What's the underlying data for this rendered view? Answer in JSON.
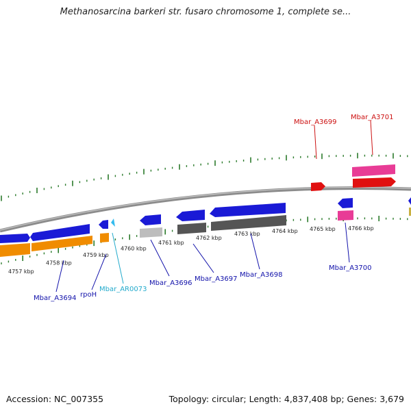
{
  "title": "Methanosarcina barkeri str. fusaro chromosome 1, complete se...",
  "footer": {
    "accession": "Accession: NC_007355",
    "summary": "Topology: circular; Length: 4,837,408 bp; Genes: 3,679"
  },
  "colors": {
    "backbone": "#8c8c8c",
    "tick": "#2a7a2a",
    "gene_blue": "#1a1ad6",
    "cds_orange": "#f08c00",
    "ncrna_cyan": "#33bbee",
    "pseudo_gray": "#bdbdbd",
    "dark_gray": "#555555",
    "pink": "#e83c96",
    "red": "#e01010",
    "label_blue": "#1111aa",
    "label_cyan": "#22aacc",
    "label_red": "#cc1010"
  },
  "axis": {
    "unit": "kbp",
    "tick_labels": [
      "4757 kbp",
      "4758 kbp",
      "4759 kbp",
      "4760 kbp",
      "4761 kbp",
      "4762 kbp",
      "4763 kbp",
      "4764 kbp",
      "4765 kbp",
      "4766 kbp"
    ]
  },
  "genes": [
    {
      "label": "Mbar_A3694",
      "label_color": "label_blue"
    },
    {
      "label": "rpoH",
      "label_color": "label_blue"
    },
    {
      "label": "Mbar_AR0073",
      "label_color": "label_cyan"
    },
    {
      "label": "Mbar_A3696",
      "label_color": "label_blue"
    },
    {
      "label": "Mbar_A3697",
      "label_color": "label_blue"
    },
    {
      "label": "Mbar_A3698",
      "label_color": "label_blue"
    },
    {
      "label": "Mbar_A3700",
      "label_color": "label_blue"
    },
    {
      "label": "Mbar_A3699",
      "label_color": "label_red"
    },
    {
      "label": "Mbar_A3701",
      "label_color": "label_red"
    }
  ]
}
